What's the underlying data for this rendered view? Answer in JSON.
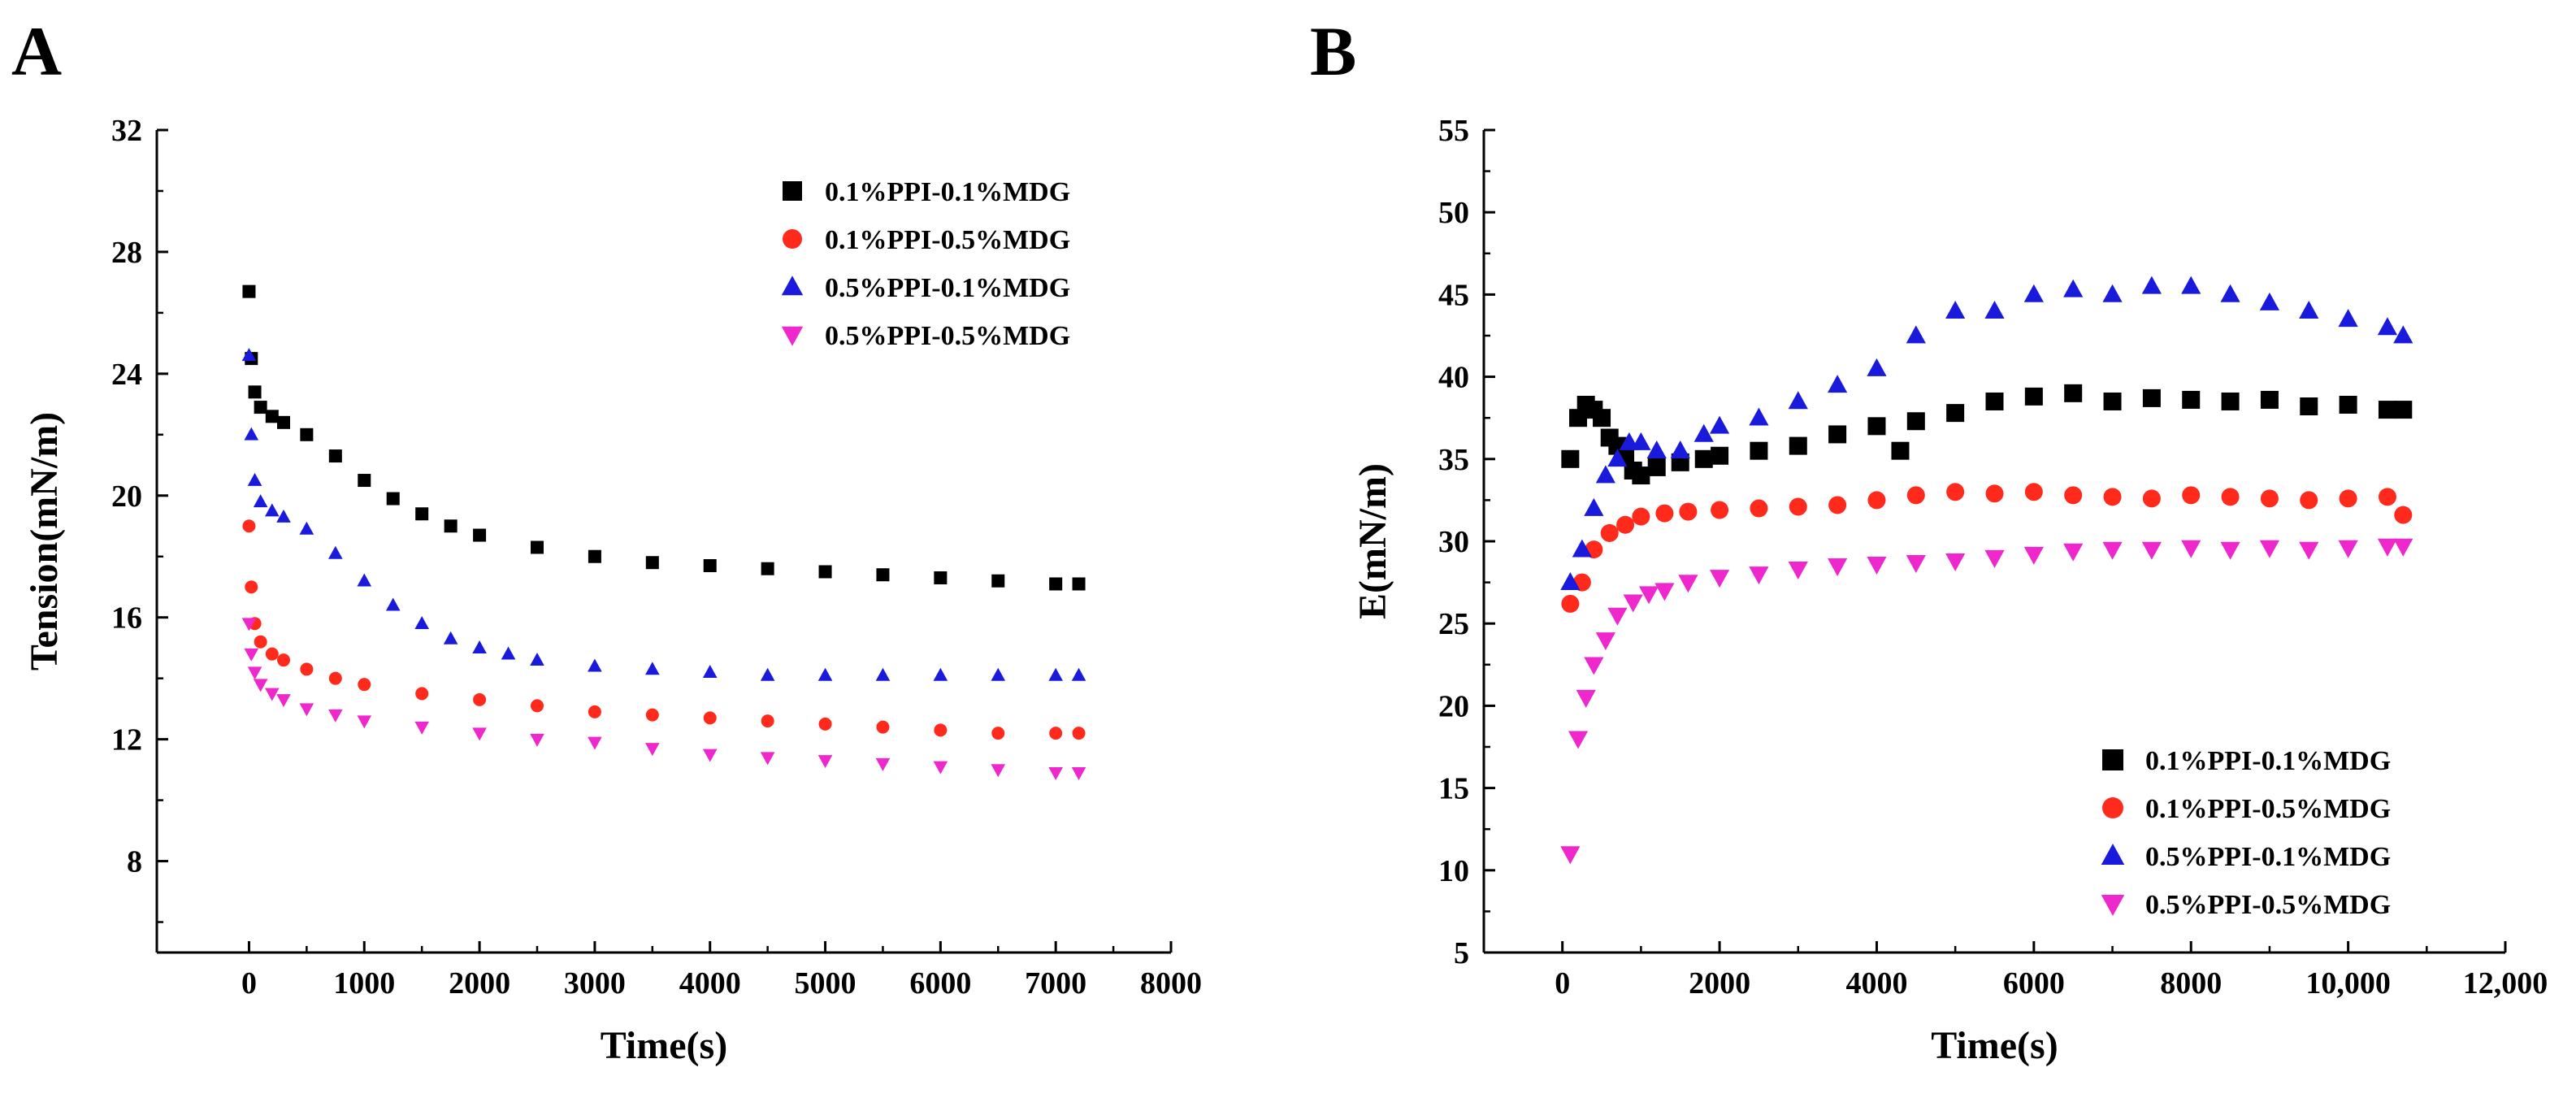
{
  "chart_data": [
    {
      "panel": "A",
      "type": "scatter",
      "xlabel": "Time(s)",
      "ylabel": "Tension(mN/m)",
      "xlim": [
        -800,
        8000
      ],
      "ylim": [
        5,
        32
      ],
      "xticks": [
        0,
        1000,
        2000,
        3000,
        4000,
        5000,
        6000,
        7000,
        8000
      ],
      "xtick_labels": [
        "0",
        "1000",
        "2000",
        "3000",
        "4000",
        "5000",
        "6000",
        "7000",
        "8000"
      ],
      "yticks": [
        8,
        12,
        16,
        20,
        24,
        28,
        32
      ],
      "ytick_labels": [
        "8",
        "12",
        "16",
        "20",
        "24",
        "28",
        "32"
      ],
      "legend_position": "top-right",
      "series": [
        {
          "name": "0.1%PPI-0.1%MDG",
          "color": "#000000",
          "marker": "square",
          "x": [
            0,
            20,
            50,
            100,
            200,
            300,
            500,
            750,
            1000,
            1250,
            1500,
            1750,
            2000,
            2500,
            3000,
            3500,
            4000,
            4500,
            5000,
            5500,
            6000,
            6500,
            7000,
            7200
          ],
          "y": [
            26.7,
            24.5,
            23.4,
            22.9,
            22.6,
            22.4,
            22.0,
            21.3,
            20.5,
            19.9,
            19.4,
            19.0,
            18.7,
            18.3,
            18.0,
            17.8,
            17.7,
            17.6,
            17.5,
            17.4,
            17.3,
            17.2,
            17.1,
            17.1
          ]
        },
        {
          "name": "0.1%PPI-0.5%MDG",
          "color": "#ff2a1c",
          "marker": "circle",
          "x": [
            0,
            20,
            50,
            100,
            200,
            300,
            500,
            750,
            1000,
            1500,
            2000,
            2500,
            3000,
            3500,
            4000,
            4500,
            5000,
            5500,
            6000,
            6500,
            7000,
            7200
          ],
          "y": [
            19.0,
            17.0,
            15.8,
            15.2,
            14.8,
            14.6,
            14.3,
            14.0,
            13.8,
            13.5,
            13.3,
            13.1,
            12.9,
            12.8,
            12.7,
            12.6,
            12.5,
            12.4,
            12.3,
            12.2,
            12.2,
            12.2
          ]
        },
        {
          "name": "0.5%PPI-0.1%MDG",
          "color": "#1a1adc",
          "marker": "triangle-up",
          "x": [
            0,
            20,
            50,
            100,
            200,
            300,
            500,
            750,
            1000,
            1250,
            1500,
            1750,
            2000,
            2250,
            2500,
            3000,
            3500,
            4000,
            4500,
            5000,
            5500,
            6000,
            6500,
            7000,
            7200
          ],
          "y": [
            24.6,
            22.0,
            20.5,
            19.8,
            19.5,
            19.3,
            18.9,
            18.1,
            17.2,
            16.4,
            15.8,
            15.3,
            15.0,
            14.8,
            14.6,
            14.4,
            14.3,
            14.2,
            14.1,
            14.1,
            14.1,
            14.1,
            14.1,
            14.1,
            14.1
          ]
        },
        {
          "name": "0.5%PPI-0.5%MDG",
          "color": "#ee28cc",
          "marker": "triangle-down",
          "x": [
            0,
            20,
            50,
            100,
            200,
            300,
            500,
            750,
            1000,
            1500,
            2000,
            2500,
            3000,
            3500,
            4000,
            4500,
            5000,
            5500,
            6000,
            6500,
            7000,
            7200
          ],
          "y": [
            15.8,
            14.8,
            14.2,
            13.8,
            13.5,
            13.3,
            13.0,
            12.8,
            12.6,
            12.4,
            12.2,
            12.0,
            11.9,
            11.7,
            11.5,
            11.4,
            11.3,
            11.2,
            11.1,
            11.0,
            10.9,
            10.9
          ]
        }
      ]
    },
    {
      "panel": "B",
      "type": "scatter",
      "xlabel": "Time(s)",
      "ylabel": "E(mN/m)",
      "xlim": [
        -1000,
        12000
      ],
      "ylim": [
        5,
        55
      ],
      "xticks": [
        0,
        2000,
        4000,
        6000,
        8000,
        10000,
        12000
      ],
      "xtick_labels": [
        "0",
        "2000",
        "4000",
        "6000",
        "8000",
        "10,000",
        "12,000"
      ],
      "yticks": [
        5,
        10,
        15,
        20,
        25,
        30,
        35,
        40,
        45,
        50,
        55
      ],
      "ytick_labels": [
        "5",
        "10",
        "15",
        "20",
        "25",
        "30",
        "35",
        "40",
        "45",
        "50",
        "55"
      ],
      "legend_position": "bottom-right",
      "series": [
        {
          "name": "0.1%PPI-0.1%MDG",
          "color": "#000000",
          "marker": "square",
          "x": [
            100,
            200,
            300,
            400,
            500,
            600,
            700,
            800,
            900,
            1000,
            1200,
            1500,
            1800,
            2000,
            2500,
            3000,
            3500,
            4000,
            4300,
            4500,
            5000,
            5500,
            6000,
            6500,
            7000,
            7500,
            8000,
            8500,
            9000,
            9500,
            10000,
            10500,
            10700
          ],
          "y": [
            35.0,
            37.5,
            38.3,
            38.0,
            37.5,
            36.3,
            35.8,
            35.2,
            34.3,
            34.0,
            34.5,
            34.8,
            35.0,
            35.2,
            35.5,
            35.8,
            36.5,
            37.0,
            35.5,
            37.3,
            37.8,
            38.5,
            38.8,
            39.0,
            38.5,
            38.7,
            38.6,
            38.5,
            38.6,
            38.2,
            38.3,
            38.0,
            38.0
          ]
        },
        {
          "name": "0.1%PPI-0.5%MDG",
          "color": "#ff2a1c",
          "marker": "circle",
          "x": [
            100,
            250,
            400,
            600,
            800,
            1000,
            1300,
            1600,
            2000,
            2500,
            3000,
            3500,
            4000,
            4500,
            5000,
            5500,
            6000,
            6500,
            7000,
            7500,
            8000,
            8500,
            9000,
            9500,
            10000,
            10500,
            10700
          ],
          "y": [
            26.2,
            27.5,
            29.5,
            30.5,
            31.0,
            31.5,
            31.7,
            31.8,
            31.9,
            32.0,
            32.1,
            32.2,
            32.5,
            32.8,
            33.0,
            32.9,
            33.0,
            32.8,
            32.7,
            32.6,
            32.8,
            32.7,
            32.6,
            32.5,
            32.6,
            32.7,
            31.6
          ]
        },
        {
          "name": "0.5%PPI-0.1%MDG",
          "color": "#1a1adc",
          "marker": "triangle-up",
          "x": [
            100,
            250,
            400,
            550,
            700,
            850,
            1000,
            1200,
            1500,
            1800,
            2000,
            2500,
            3000,
            3500,
            4000,
            4500,
            5000,
            5500,
            6000,
            6500,
            7000,
            7500,
            8000,
            8500,
            9000,
            9500,
            10000,
            10500,
            10700
          ],
          "y": [
            27.5,
            29.5,
            32.0,
            34.0,
            35.0,
            36.0,
            36.0,
            35.5,
            35.5,
            36.5,
            37.0,
            37.5,
            38.5,
            39.5,
            40.5,
            42.5,
            44.0,
            44.0,
            45.0,
            45.3,
            45.0,
            45.5,
            45.5,
            45.0,
            44.5,
            44.0,
            43.5,
            43.0,
            42.5
          ]
        },
        {
          "name": "0.5%PPI-0.5%MDG",
          "color": "#ee28cc",
          "marker": "triangle-down",
          "x": [
            100,
            200,
            300,
            400,
            550,
            700,
            900,
            1100,
            1300,
            1600,
            2000,
            2500,
            3000,
            3500,
            4000,
            4500,
            5000,
            5500,
            6000,
            6500,
            7000,
            7500,
            8000,
            8500,
            9000,
            9500,
            10000,
            10500,
            10700
          ],
          "y": [
            11.0,
            18.0,
            20.5,
            22.5,
            24.0,
            25.5,
            26.3,
            26.8,
            27.0,
            27.5,
            27.8,
            28.0,
            28.3,
            28.5,
            28.6,
            28.7,
            28.8,
            29.0,
            29.2,
            29.4,
            29.5,
            29.5,
            29.6,
            29.5,
            29.6,
            29.5,
            29.6,
            29.7,
            29.7
          ]
        }
      ]
    }
  ]
}
